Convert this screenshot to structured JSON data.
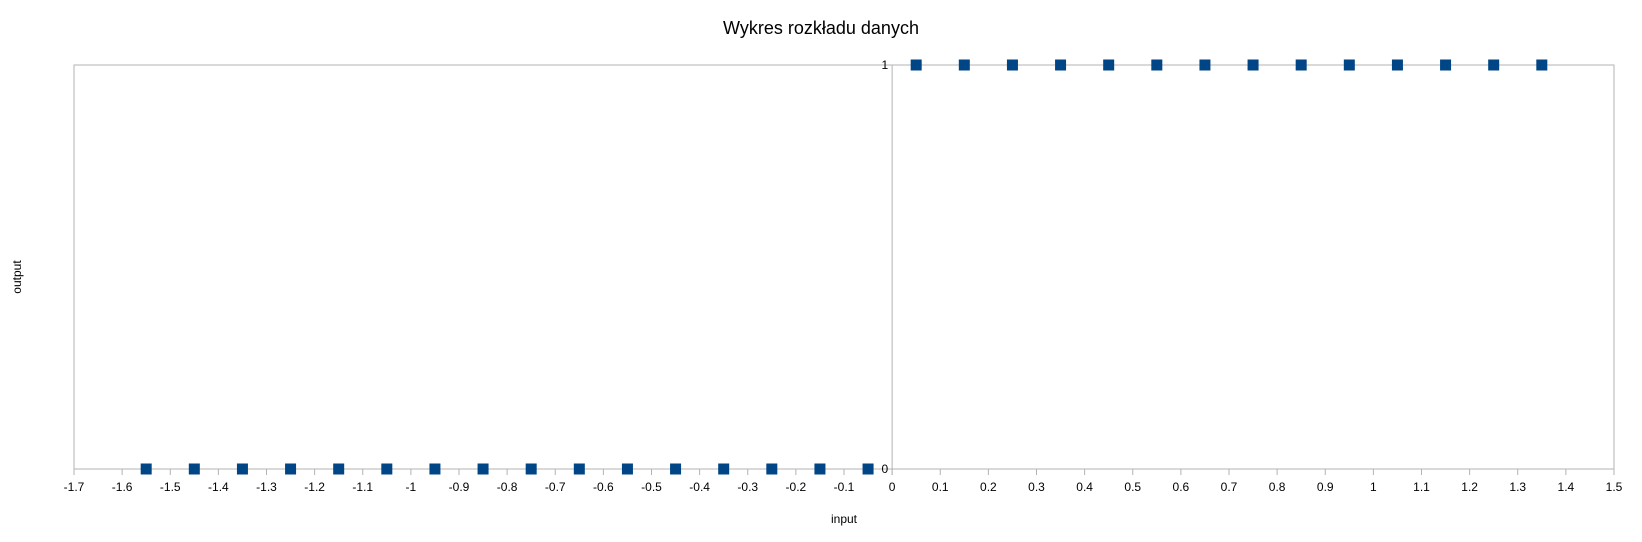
{
  "chart_data": {
    "type": "scatter",
    "title": "Wykres rozkładu danych",
    "xlabel": "input",
    "ylabel": "output",
    "xlim": [
      -1.7,
      1.5
    ],
    "ylim": [
      0,
      1
    ],
    "x_ticks": [
      -1.7,
      -1.6,
      -1.5,
      -1.4,
      -1.3,
      -1.2,
      -1.1,
      -1,
      -0.9,
      -0.8,
      -0.7,
      -0.6,
      -0.5,
      -0.4,
      -0.3,
      -0.2,
      -0.1,
      0,
      0.1,
      0.2,
      0.3,
      0.4,
      0.5,
      0.6,
      0.7,
      0.8,
      0.9,
      1,
      1.1,
      1.2,
      1.3,
      1.4,
      1.5
    ],
    "y_ticks": [
      0,
      1
    ],
    "grid": false,
    "legend": "none",
    "marker": "square",
    "colors": {
      "marker": "#004586",
      "axis": "#b3b3b3"
    },
    "series": [
      {
        "x": [
          -1.55,
          -1.45,
          -1.35,
          -1.25,
          -1.15,
          -1.05,
          -0.95,
          -0.85,
          -0.75,
          -0.65,
          -0.55,
          -0.45,
          -0.35,
          -0.25,
          -0.15,
          -0.05,
          0.05,
          0.15,
          0.25,
          0.35,
          0.45,
          0.55,
          0.65,
          0.75,
          0.85,
          0.95,
          1.05,
          1.15,
          1.25,
          1.35
        ],
        "y": [
          0,
          0,
          0,
          0,
          0,
          0,
          0,
          0,
          0,
          0,
          0,
          0,
          0,
          0,
          0,
          0,
          1,
          1,
          1,
          1,
          1,
          1,
          1,
          1,
          1,
          1,
          1,
          1,
          1,
          1
        ]
      }
    ]
  }
}
